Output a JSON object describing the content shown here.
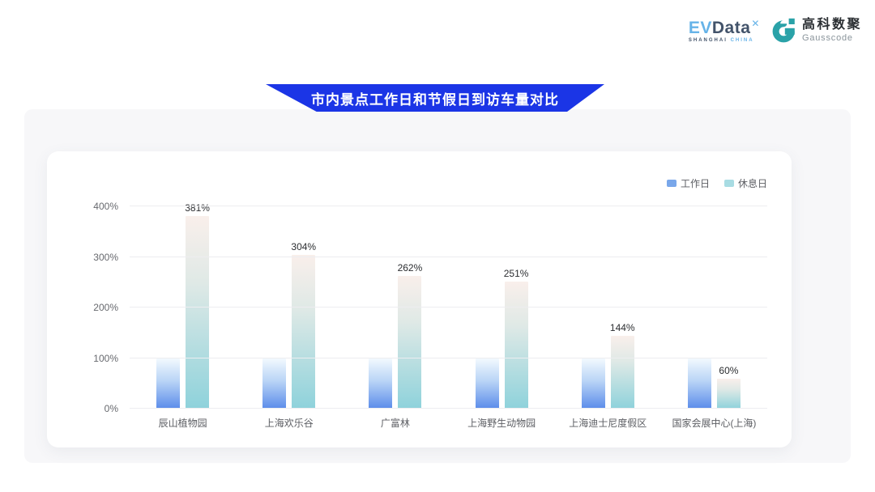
{
  "logos": {
    "evdata": {
      "ev": "EV",
      "data": "Data",
      "sup": "✕",
      "shanghai": "SHANGHAI",
      "china": "CHINA"
    },
    "gausscode": {
      "cn": "高科数聚",
      "en": "Gausscode",
      "icon_color": "#2aa2a8"
    }
  },
  "banner": {
    "title": "市内景点工作日和节假日到访车量对比",
    "color": "#1b35e6"
  },
  "chart_data": {
    "type": "bar",
    "title": "市内景点工作日和节假日到访车量对比",
    "categories": [
      "辰山植物园",
      "上海欢乐谷",
      "广富林",
      "上海野生动物园",
      "上海迪士尼度假区",
      "国家会展中心(上海)"
    ],
    "series": [
      {
        "name": "工作日",
        "values": [
          100,
          100,
          100,
          100,
          100,
          100
        ],
        "show_labels": false,
        "labels": [],
        "swatch": "#79a7ea",
        "gradient": [
          "#f2f9fe 0%",
          "#b9d4f6 45%",
          "#5b8cea 100%"
        ]
      },
      {
        "name": "休息日",
        "values": [
          381,
          304,
          262,
          251,
          144,
          60
        ],
        "show_labels": true,
        "labels": [
          "381%",
          "304%",
          "262%",
          "251%",
          "144%",
          "60%"
        ],
        "swatch": "#a8dce3",
        "gradient": [
          "#f9efeb 0%",
          "#dfe9e6 35%",
          "#8ed2db 100%"
        ]
      }
    ],
    "yticks": [
      "0%",
      "100%",
      "200%",
      "300%",
      "400%"
    ],
    "ylabel": "",
    "xlabel": "",
    "ylim": [
      0,
      400
    ],
    "grid": true,
    "legend_position": "top-right"
  }
}
